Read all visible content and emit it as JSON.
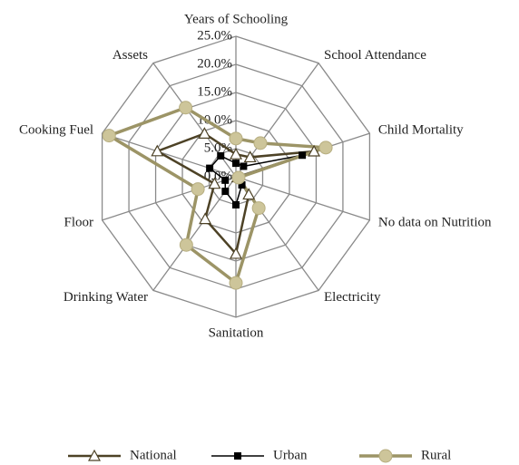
{
  "chart_data": {
    "type": "radar",
    "categories": [
      "Years of Schooling",
      "School Attendance",
      "Child Mortality",
      "No data on Nutrition",
      "Electricity",
      "Sanitation",
      "Drinking Water",
      "Floor",
      "Cooking Fuel",
      "Assets"
    ],
    "ylim": [
      0,
      25
    ],
    "yticks": [
      {
        "value": 0,
        "label": "0.0%"
      },
      {
        "value": 5,
        "label": "5.0%"
      },
      {
        "value": 10,
        "label": "10.0%"
      },
      {
        "value": 15,
        "label": "15.0%"
      },
      {
        "value": 20,
        "label": "20.0%"
      },
      {
        "value": 25,
        "label": "25.0%"
      }
    ],
    "grid": true,
    "legend": "bottom",
    "series": [
      {
        "name": "National",
        "color": "#4d4226",
        "marker": "triangle",
        "values": [
          4.0,
          4.3,
          14.6,
          0.3,
          3.9,
          13.7,
          9.3,
          4.0,
          14.7,
          9.5
        ]
      },
      {
        "name": "Urban",
        "color": "#000000",
        "marker": "square",
        "values": [
          2.4,
          2.3,
          12.4,
          0.2,
          1.8,
          5.0,
          3.2,
          2.0,
          4.9,
          4.6
        ]
      },
      {
        "name": "Rural",
        "color": "#9c9466",
        "marker": "circle",
        "values": [
          6.8,
          7.4,
          16.8,
          0.5,
          6.9,
          18.9,
          15.0,
          7.1,
          23.7,
          15.2
        ]
      }
    ]
  }
}
